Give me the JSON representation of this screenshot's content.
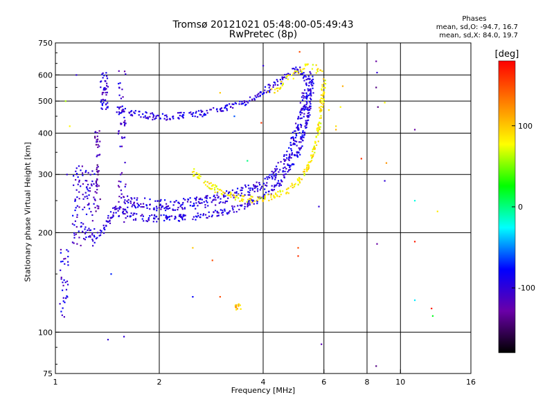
{
  "chart_data": {
    "type": "scatter",
    "title": "Tromsø 20121021 05:48:00-05:49:43",
    "subtitle": "RwPretec (8p)",
    "xlabel": "Frequency [MHz]",
    "ylabel": "Stationary phase Virtual Height [km]",
    "x_scale": "log",
    "y_scale": "log",
    "xlim": [
      1,
      16
    ],
    "ylim": [
      75,
      750
    ],
    "x_ticks": [
      {
        "value": 1,
        "label": "1"
      },
      {
        "value": 2,
        "label": "2"
      },
      {
        "value": 4,
        "label": "4"
      },
      {
        "value": 6,
        "label": "6"
      },
      {
        "value": 8,
        "label": "8"
      },
      {
        "value": 10,
        "label": "10"
      },
      {
        "value": 16,
        "label": "16"
      }
    ],
    "y_ticks": [
      {
        "value": 75,
        "label": "75"
      },
      {
        "value": 100,
        "label": "100"
      },
      {
        "value": 200,
        "label": "200"
      },
      {
        "value": 300,
        "label": "300"
      },
      {
        "value": 400,
        "label": "400"
      },
      {
        "value": 500,
        "label": "500"
      },
      {
        "value": 600,
        "label": "600"
      },
      {
        "value": 750,
        "label": "750"
      }
    ],
    "grid": true,
    "stats": {
      "heading": "Phases",
      "line1": "mean, sd,O: -94.7, 16.7",
      "line2": "mean, sd,X: 84.0, 19.7"
    },
    "colorbar": {
      "label": "[deg]",
      "range": [
        -180,
        180
      ],
      "ticks": [
        {
          "value": 100,
          "label": "100"
        },
        {
          "value": 0,
          "label": "0"
        },
        {
          "value": -100,
          "label": "-100"
        }
      ],
      "colors": [
        "#000000",
        "#6a00a8",
        "#0000ff",
        "#00ffff",
        "#00ff00",
        "#ffff00",
        "#ff8000",
        "#ff0000"
      ]
    },
    "traces": [
      {
        "mode": "O",
        "name": "",
        "phase": -95,
        "spread": 0.012,
        "density": 3,
        "points": [
          [
            1.28,
            195
          ],
          [
            1.35,
            200
          ],
          [
            1.42,
            215
          ],
          [
            1.5,
            240
          ],
          [
            1.62,
            225
          ],
          [
            1.8,
            222
          ],
          [
            2.0,
            221
          ],
          [
            2.3,
            222
          ],
          [
            2.7,
            225
          ],
          [
            3.2,
            233
          ],
          [
            3.7,
            246
          ],
          [
            4.1,
            262
          ],
          [
            4.5,
            285
          ],
          [
            4.8,
            315
          ],
          [
            5.05,
            350
          ],
          [
            5.25,
            400
          ],
          [
            5.4,
            460
          ],
          [
            5.5,
            520
          ],
          [
            5.55,
            560
          ]
        ]
      },
      {
        "mode": "O",
        "name": "",
        "phase": -95,
        "spread": 0.012,
        "density": 3,
        "points": [
          [
            1.52,
            470
          ],
          [
            1.7,
            458
          ],
          [
            1.9,
            450
          ],
          [
            2.1,
            448
          ],
          [
            2.4,
            453
          ],
          [
            2.8,
            465
          ],
          [
            3.2,
            480
          ],
          [
            3.6,
            500
          ],
          [
            4.0,
            530
          ],
          [
            4.4,
            570
          ],
          [
            4.7,
            600
          ],
          [
            5.0,
            625
          ],
          [
            5.2,
            615
          ],
          [
            5.35,
            585
          ]
        ]
      },
      {
        "mode": "O",
        "name": "",
        "phase": -95,
        "spread": 0.02,
        "density": 4,
        "points": [
          [
            1.55,
            250
          ],
          [
            1.8,
            245
          ],
          [
            2.1,
            242
          ],
          [
            2.4,
            244
          ],
          [
            2.8,
            250
          ],
          [
            3.3,
            262
          ],
          [
            3.8,
            275
          ],
          [
            4.2,
            290
          ],
          [
            4.6,
            320
          ],
          [
            4.9,
            370
          ],
          [
            5.1,
            430
          ],
          [
            5.3,
            520
          ],
          [
            5.5,
            600
          ]
        ]
      },
      {
        "mode": "X",
        "name": "",
        "phase": 84,
        "spread": 0.012,
        "density": 3,
        "points": [
          [
            2.5,
            305
          ],
          [
            2.7,
            285
          ],
          [
            3.0,
            265
          ],
          [
            3.4,
            255
          ],
          [
            3.8,
            252
          ],
          [
            4.3,
            258
          ],
          [
            4.8,
            272
          ],
          [
            5.2,
            295
          ],
          [
            5.5,
            330
          ],
          [
            5.7,
            380
          ],
          [
            5.85,
            440
          ],
          [
            5.95,
            520
          ],
          [
            6.0,
            580
          ]
        ]
      },
      {
        "mode": "X",
        "name": "",
        "phase": 84,
        "spread": 0.012,
        "density": 2,
        "points": [
          [
            4.1,
            525
          ],
          [
            4.5,
            560
          ],
          [
            4.9,
            600
          ],
          [
            5.3,
            640
          ],
          [
            5.7,
            630
          ],
          [
            5.9,
            600
          ]
        ]
      }
    ],
    "clusters": [
      {
        "name": "",
        "phase": -100,
        "x": [
          1.12,
          1.3
        ],
        "y": [
          180,
          320
        ],
        "count": 110
      },
      {
        "name": "",
        "phase": -125,
        "x": [
          1.3,
          1.35
        ],
        "y": [
          230,
          420
        ],
        "count": 50
      },
      {
        "name": "",
        "phase": -100,
        "x": [
          1.35,
          1.42
        ],
        "y": [
          470,
          610
        ],
        "count": 45
      },
      {
        "name": "",
        "phase": -105,
        "x": [
          1.52,
          1.6
        ],
        "y": [
          210,
          630
        ],
        "count": 60
      },
      {
        "name": "",
        "phase": -100,
        "x": [
          1.03,
          1.09
        ],
        "y": [
          108,
          180
        ],
        "count": 35
      },
      {
        "name": "",
        "phase": 95,
        "x": [
          3.3,
          3.45
        ],
        "y": [
          117,
          122
        ],
        "count": 14
      }
    ],
    "isolated_points": [
      {
        "x": 1.07,
        "y": 500,
        "phase": 60
      },
      {
        "x": 1.1,
        "y": 420,
        "phase": 80
      },
      {
        "x": 1.08,
        "y": 300,
        "phase": -100
      },
      {
        "x": 1.15,
        "y": 600,
        "phase": -100
      },
      {
        "x": 1.45,
        "y": 150,
        "phase": -70
      },
      {
        "x": 1.42,
        "y": 95,
        "phase": -100
      },
      {
        "x": 1.58,
        "y": 97,
        "phase": -100
      },
      {
        "x": 2.5,
        "y": 180,
        "phase": 100
      },
      {
        "x": 2.5,
        "y": 128,
        "phase": -80
      },
      {
        "x": 2.85,
        "y": 165,
        "phase": 150
      },
      {
        "x": 3.0,
        "y": 128,
        "phase": 150
      },
      {
        "x": 3.0,
        "y": 530,
        "phase": 100
      },
      {
        "x": 3.3,
        "y": 450,
        "phase": -60
      },
      {
        "x": 3.6,
        "y": 330,
        "phase": 0
      },
      {
        "x": 3.95,
        "y": 430,
        "phase": 160
      },
      {
        "x": 4.0,
        "y": 640,
        "phase": -100
      },
      {
        "x": 5.05,
        "y": 180,
        "phase": 150
      },
      {
        "x": 5.05,
        "y": 170,
        "phase": 160
      },
      {
        "x": 5.1,
        "y": 705,
        "phase": 150
      },
      {
        "x": 5.8,
        "y": 240,
        "phase": -100
      },
      {
        "x": 5.9,
        "y": 92,
        "phase": -120
      },
      {
        "x": 6.5,
        "y": 410,
        "phase": 110
      },
      {
        "x": 6.8,
        "y": 555,
        "phase": 110
      },
      {
        "x": 7.7,
        "y": 335,
        "phase": 160
      },
      {
        "x": 8.5,
        "y": 660,
        "phase": -130
      },
      {
        "x": 8.55,
        "y": 610,
        "phase": -100
      },
      {
        "x": 8.5,
        "y": 550,
        "phase": -140
      },
      {
        "x": 8.6,
        "y": 480,
        "phase": -140
      },
      {
        "x": 8.55,
        "y": 185,
        "phase": -130
      },
      {
        "x": 8.5,
        "y": 79,
        "phase": -140
      },
      {
        "x": 9.0,
        "y": 495,
        "phase": 80
      },
      {
        "x": 9.1,
        "y": 325,
        "phase": 120
      },
      {
        "x": 9.0,
        "y": 287,
        "phase": -100
      },
      {
        "x": 11.0,
        "y": 410,
        "phase": -130
      },
      {
        "x": 11.0,
        "y": 250,
        "phase": -20
      },
      {
        "x": 11.0,
        "y": 188,
        "phase": 170
      },
      {
        "x": 11.0,
        "y": 125,
        "phase": -30
      },
      {
        "x": 12.3,
        "y": 118,
        "phase": 170
      },
      {
        "x": 12.4,
        "y": 112,
        "phase": 20
      },
      {
        "x": 12.8,
        "y": 232,
        "phase": 85
      },
      {
        "x": 5.95,
        "y": 480,
        "phase": 90
      },
      {
        "x": 6.2,
        "y": 470,
        "phase": 85
      },
      {
        "x": 6.5,
        "y": 420,
        "phase": 90
      },
      {
        "x": 6.7,
        "y": 480,
        "phase": 80
      }
    ]
  }
}
